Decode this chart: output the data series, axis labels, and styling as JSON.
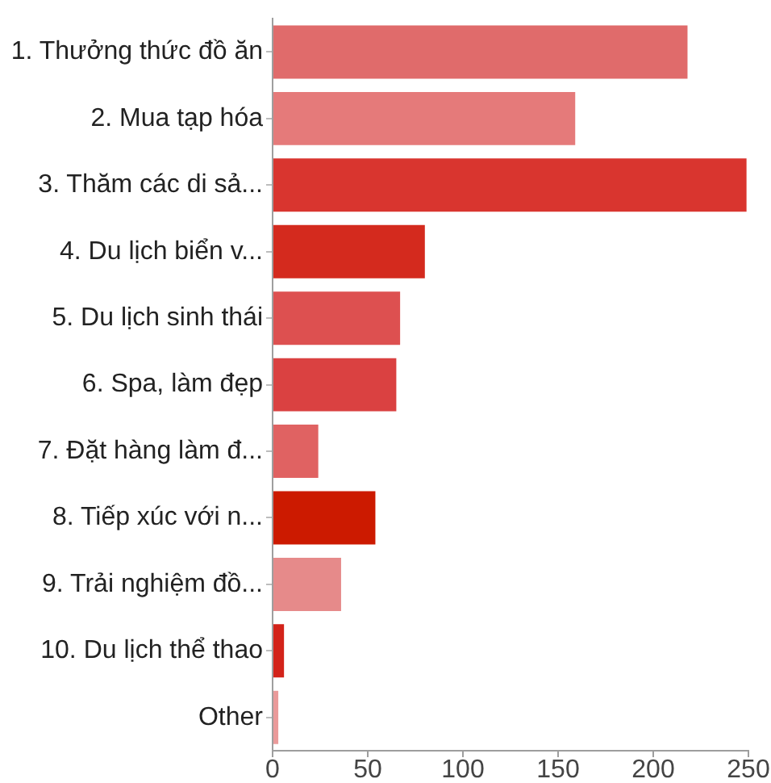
{
  "chart_data": {
    "type": "bar",
    "orientation": "horizontal",
    "categories": [
      "1. Thưởng thức đồ ăn",
      "2. Mua tạp hóa",
      "3. Thăm các di sả...",
      "4. Du lịch biển v...",
      "5. Du lịch sinh thái",
      "6. Spa, làm đẹp",
      "7. Đặt hàng làm đ...",
      "8. Tiếp xúc với n...",
      "9. Trải nghiệm đồ...",
      "10. Du lịch thể thao",
      "Other"
    ],
    "values": [
      218,
      159,
      249,
      80,
      67,
      65,
      24,
      54,
      36,
      6,
      3
    ],
    "colors": [
      "#e06b6b",
      "#e57a7a",
      "#d9352f",
      "#d42a1e",
      "#dd5050",
      "#da4141",
      "#e06262",
      "#cc1a00",
      "#e68a8a",
      "#d3231a",
      "#ea9a9a"
    ],
    "xlim": [
      0,
      250
    ],
    "xticks": [
      0,
      50,
      100,
      150,
      200,
      250
    ],
    "grid": false,
    "legend": false
  }
}
